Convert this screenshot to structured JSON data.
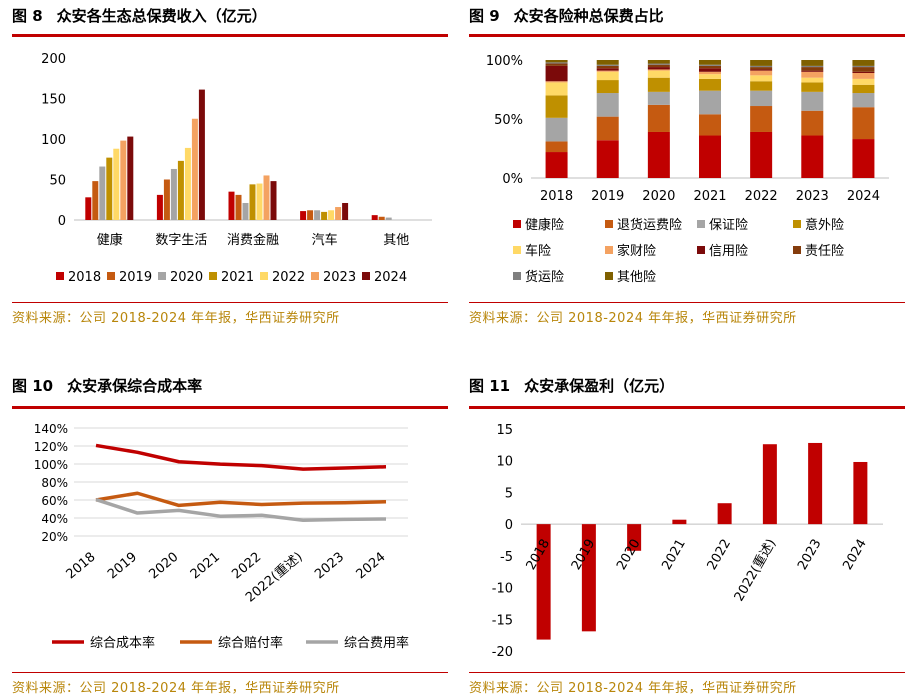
{
  "source_text": "资料来源：公司 2018-2024 年年报，华西证券研究所",
  "panels": {
    "fig8": {
      "title_num": "图 8",
      "title_text": "众安各生态总保费收入（亿元）"
    },
    "fig9": {
      "title_num": "图 9",
      "title_text": "众安各险种总保费占比"
    },
    "fig10": {
      "title_num": "图 10",
      "title_text": "众安承保综合成本率"
    },
    "fig11": {
      "title_num": "图 11",
      "title_text": "众安承保盈利（亿元）"
    }
  },
  "colors": {
    "accent_red": "#c00000",
    "source_gold": "#b8860b"
  },
  "chart_data": [
    {
      "id": "fig8",
      "type": "bar",
      "title": "众安各生态总保费收入（亿元）",
      "categories": [
        "健康",
        "数字生活",
        "消费金融",
        "汽车",
        "其他"
      ],
      "ylim": [
        0,
        200
      ],
      "yticks": [
        0,
        50,
        100,
        150,
        200
      ],
      "legend_position": "bottom",
      "series": [
        {
          "name": "2018",
          "color": "#c00000",
          "values": [
            28,
            31,
            35,
            11,
            6
          ]
        },
        {
          "name": "2019",
          "color": "#c55a11",
          "values": [
            48,
            50,
            31,
            12,
            4
          ]
        },
        {
          "name": "2020",
          "color": "#a5a5a5",
          "values": [
            66,
            63,
            21,
            12,
            3
          ]
        },
        {
          "name": "2021",
          "color": "#bf9000",
          "values": [
            77,
            73,
            44,
            10,
            0
          ]
        },
        {
          "name": "2022",
          "color": "#ffd966",
          "values": [
            88,
            89,
            45,
            12,
            0
          ]
        },
        {
          "name": "2023",
          "color": "#f4a261",
          "values": [
            98,
            125,
            55,
            16,
            0
          ]
        },
        {
          "name": "2024",
          "color": "#7b0a0a",
          "values": [
            103,
            161,
            48,
            21,
            0
          ]
        }
      ]
    },
    {
      "id": "fig9",
      "type": "bar",
      "stacked": true,
      "title": "众安各险种总保费占比",
      "categories": [
        "2018",
        "2019",
        "2020",
        "2021",
        "2022",
        "2023",
        "2024"
      ],
      "ylim": [
        0,
        100
      ],
      "yticks": [
        "0%",
        "50%",
        "100%"
      ],
      "legend_position": "bottom",
      "series": [
        {
          "name": "健康险",
          "color": "#c00000",
          "values": [
            22,
            32,
            39,
            36,
            39,
            36,
            33
          ]
        },
        {
          "name": "退货运费险",
          "color": "#c55a11",
          "values": [
            9,
            20,
            23,
            18,
            22,
            21,
            27
          ]
        },
        {
          "name": "保证险",
          "color": "#a5a5a5",
          "values": [
            20,
            20,
            11,
            20,
            13,
            16,
            12
          ]
        },
        {
          "name": "意外险",
          "color": "#bf9000",
          "values": [
            19,
            11,
            12,
            10,
            8,
            8,
            7
          ]
        },
        {
          "name": "车险",
          "color": "#ffd966",
          "values": [
            11,
            7,
            6,
            4,
            5,
            4,
            5
          ]
        },
        {
          "name": "家财险",
          "color": "#f4a261",
          "values": [
            1,
            1,
            1,
            2,
            4,
            5,
            5
          ]
        },
        {
          "name": "信用险",
          "color": "#7b0a0a",
          "values": [
            13,
            2,
            2,
            3,
            1,
            1,
            1
          ]
        },
        {
          "name": "责任险",
          "color": "#843c0c",
          "values": [
            2,
            2,
            2,
            2,
            2,
            3,
            4
          ]
        },
        {
          "name": "货运险",
          "color": "#7f7f7f",
          "values": [
            1,
            1,
            1,
            1,
            1,
            1,
            1
          ]
        },
        {
          "name": "其他险",
          "color": "#7f6000",
          "values": [
            2,
            4,
            3,
            4,
            5,
            5,
            5
          ]
        }
      ]
    },
    {
      "id": "fig10",
      "type": "line",
      "title": "众安承保综合成本率",
      "categories": [
        "2018",
        "2019",
        "2020",
        "2021",
        "2022",
        "2022(重述)",
        "2023",
        "2024"
      ],
      "ylim": [
        20,
        140
      ],
      "yticks": [
        "20%",
        "40%",
        "60%",
        "80%",
        "100%",
        "120%",
        "140%"
      ],
      "legend_position": "bottom",
      "series": [
        {
          "name": "综合成本率",
          "color": "#c00000",
          "values": [
            120.6,
            113.0,
            102.5,
            99.8,
            98.2,
            94.3,
            95.5,
            96.9
          ]
        },
        {
          "name": "综合赔付率",
          "color": "#c55a11",
          "values": [
            60.0,
            67.5,
            54.0,
            57.5,
            55.0,
            56.5,
            57.0,
            58.0
          ]
        },
        {
          "name": "综合费用率",
          "color": "#a5a5a5",
          "values": [
            60.5,
            45.5,
            48.5,
            42.0,
            43.0,
            37.5,
            38.5,
            38.9
          ]
        }
      ]
    },
    {
      "id": "fig11",
      "type": "bar",
      "title": "众安承保盈利（亿元）",
      "categories": [
        "2018",
        "2019",
        "2020",
        "2021",
        "2022",
        "2022(重述)",
        "2023",
        "2024"
      ],
      "ylim": [
        -20,
        15
      ],
      "yticks": [
        "-20",
        "-15",
        "-10",
        "-5",
        "0",
        "5",
        "10",
        "15"
      ],
      "series": [
        {
          "color": "#c00000",
          "values": [
            -18.2,
            -16.9,
            -4.2,
            0.7,
            3.3,
            12.6,
            12.8,
            9.8
          ]
        }
      ]
    }
  ]
}
